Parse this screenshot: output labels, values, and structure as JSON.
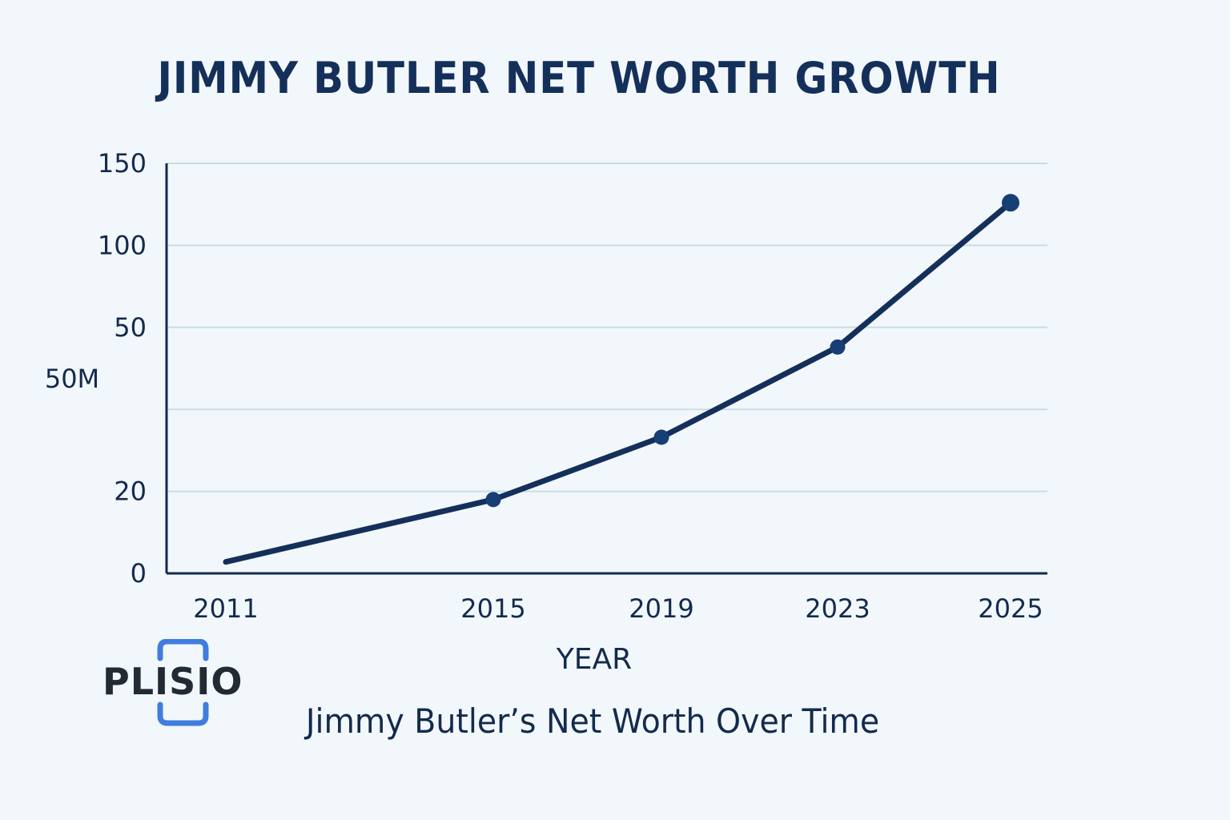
{
  "chart_data": {
    "type": "line",
    "title": "JIMMY BUTLER NET WORTH GROWTH",
    "subtitle": "Jimmy Butler’s Net Worth Over Time",
    "xlabel": "YEAR",
    "ylabel": "50M",
    "x": [
      2011,
      2015,
      2019,
      2023,
      2025
    ],
    "x_tick_labels": [
      "2011",
      "2015",
      "2019",
      "2023",
      "2025"
    ],
    "y_tick_labels": [
      "150",
      "100",
      "50",
      "",
      "20",
      "0"
    ],
    "series": [
      {
        "values": [
          7,
          45,
          83,
          138,
          226
        ]
      }
    ],
    "ylim": [
      0,
      250
    ],
    "grid": true,
    "line_color": "#14305a",
    "marker_color": "#173e75"
  },
  "logo": {
    "text": "PLISIO",
    "accent_color": "#3f7de0"
  }
}
